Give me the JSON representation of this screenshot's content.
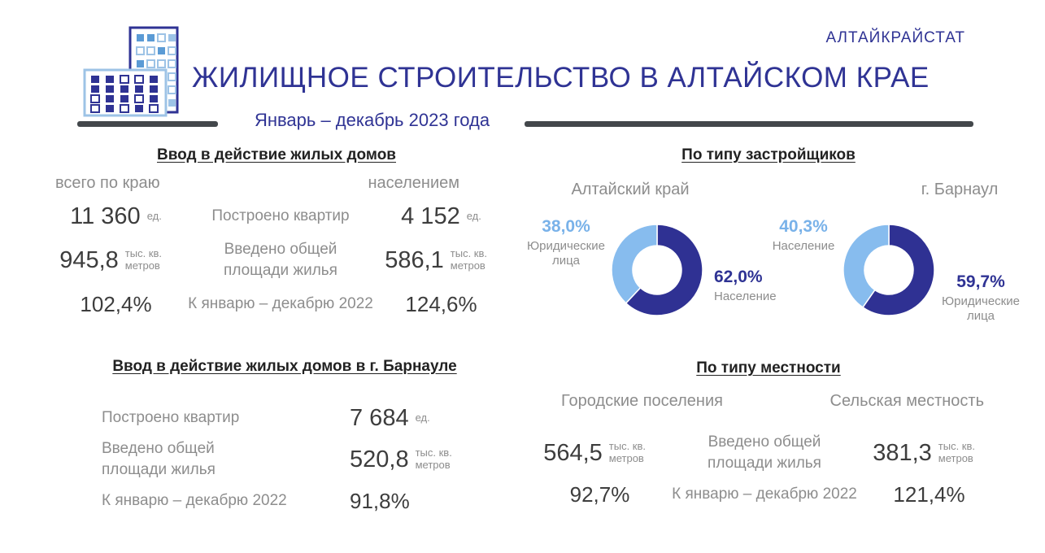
{
  "header": {
    "org": "АЛТАЙКРАЙСТАТ",
    "title": "ЖИЛИЩНОЕ СТРОИТЕЛЬСТВО В АЛТАЙСКОМ КРАЕ",
    "subtitle": "Январь – декабрь 2023 года"
  },
  "colors": {
    "primary_dark_blue": "#2F3394",
    "donut_dark": "#2F3193",
    "donut_light": "#87BCEE",
    "light_blue_text": "#79B2E9",
    "gray_label": "#8d8d8d",
    "number_text": "#3d3d3d",
    "divider_bar": "#43474b"
  },
  "section_region": {
    "title": "Ввод в действие жилых домов",
    "col_left": "всего по краю",
    "col_right": "населением",
    "rows": [
      {
        "left": "11 360",
        "left_unit": "ед.",
        "label": "Построено квартир",
        "right": "4 152",
        "right_unit": "ед."
      },
      {
        "left": "945,8",
        "left_unit": "тыс. кв. метров",
        "label": "Введено общей площади жилья",
        "right": "586,1",
        "right_unit": "тыс. кв. метров"
      },
      {
        "left": "102,4%",
        "left_unit": "",
        "label": "К январю – декабрю 2022",
        "right": "124,6%",
        "right_unit": ""
      }
    ]
  },
  "section_developers": {
    "title": "По типу застройщиков"
  },
  "section_barnaul": {
    "title": "Ввод в действие жилых домов в г. Барнауле",
    "rows": [
      {
        "label": "Построено квартир",
        "value": "7 684",
        "unit": "ед."
      },
      {
        "label": "Введено общей площади жилья",
        "value": "520,8",
        "unit": "тыс. кв. метров"
      },
      {
        "label": "К январю – декабрю 2022",
        "value": "91,8%",
        "unit": ""
      }
    ]
  },
  "section_locality": {
    "title": "По типу местности",
    "col_left": "Городские поселения",
    "col_right": "Сельская местность",
    "rows": [
      {
        "left": "564,5",
        "left_unit": "тыс. кв. метров",
        "label": "Введено общей площади жилья",
        "right": "381,3",
        "right_unit": "тыс. кв. метров"
      },
      {
        "left": "92,7%",
        "left_unit": "",
        "label": "К январю – декабрю 2022",
        "right": "121,4%",
        "right_unit": ""
      }
    ]
  },
  "chart_data": [
    {
      "type": "pie",
      "title": "Алтайский край",
      "legend_position": "sides",
      "slices": [
        {
          "label": "Население",
          "value": 62.0,
          "display": "62,0%",
          "color": "#2F3193"
        },
        {
          "label": "Юридические лица",
          "value": 38.0,
          "display": "38,0%",
          "color": "#87BCEE"
        }
      ]
    },
    {
      "type": "pie",
      "title": "г. Барнаул",
      "legend_position": "sides",
      "slices": [
        {
          "label": "Юридические лица",
          "value": 59.7,
          "display": "59,7%",
          "color": "#2F3193"
        },
        {
          "label": "Население",
          "value": 40.3,
          "display": "40,3%",
          "color": "#87BCEE"
        }
      ]
    }
  ]
}
